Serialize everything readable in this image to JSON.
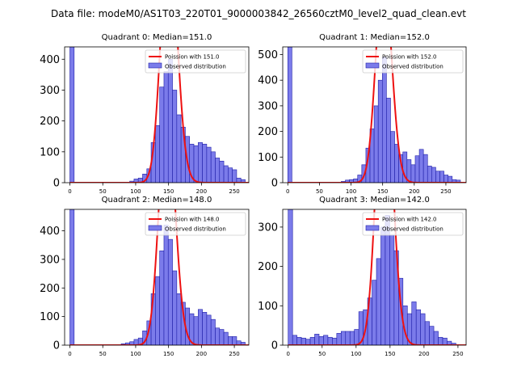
{
  "suptitle": "Data file: modeM0/AS1T03_220T01_9000003842_26560cztM0_level2_quad_clean.evt",
  "colors": {
    "hist_fill": "#7b7bea",
    "hist_edge": "#1f1fa8",
    "poisson": "#ee1111"
  },
  "chart_data": [
    {
      "type": "bar",
      "title": "Quadrant 0: Median=151.0",
      "median": 151.0,
      "legend": [
        "Poission with 151.0",
        "Observed distribution"
      ],
      "legend_position": "top-right",
      "xlim": [
        -8,
        272
      ],
      "ylim": [
        0,
        440
      ],
      "xticks": [
        0,
        50,
        100,
        150,
        200,
        250
      ],
      "yticks": [
        0,
        100,
        200,
        300,
        400
      ],
      "bin_width": 6.5,
      "bin_starts": [
        0,
        91,
        97.5,
        104,
        110.5,
        117,
        123.5,
        130,
        136.5,
        143,
        149.5,
        156,
        162.5,
        169,
        175.5,
        182,
        188.5,
        195,
        201.5,
        208,
        214.5,
        221,
        227.5,
        234,
        240.5,
        247,
        253.5,
        260
      ],
      "counts": [
        440,
        5,
        12,
        15,
        28,
        45,
        130,
        185,
        310,
        360,
        400,
        300,
        220,
        180,
        150,
        125,
        120,
        130,
        125,
        115,
        100,
        80,
        70,
        55,
        48,
        42,
        15,
        10
      ]
    },
    {
      "type": "bar",
      "title": "Quadrant 1: Median=152.0",
      "median": 152.0,
      "legend": [
        "Poission with 152.0",
        "Observed distribution"
      ],
      "legend_position": "top-right",
      "xlim": [
        -8,
        282
      ],
      "ylim": [
        0,
        530
      ],
      "xticks": [
        0,
        50,
        100,
        150,
        200,
        250
      ],
      "yticks": [
        0,
        100,
        200,
        300,
        400,
        500
      ],
      "bin_width": 6.5,
      "bin_starts": [
        0,
        78,
        84.5,
        91,
        97.5,
        104,
        110.5,
        117,
        123.5,
        130,
        136.5,
        143,
        149.5,
        156,
        162.5,
        169,
        175.5,
        182,
        188.5,
        195,
        201.5,
        208,
        214.5,
        221,
        227.5,
        234,
        240.5,
        247,
        253.5,
        260,
        266.5
      ],
      "counts": [
        530,
        2,
        5,
        10,
        12,
        15,
        30,
        70,
        135,
        210,
        300,
        400,
        490,
        330,
        200,
        150,
        110,
        120,
        90,
        70,
        105,
        130,
        110,
        65,
        60,
        45,
        45,
        30,
        25,
        12,
        10
      ]
    },
    {
      "type": "bar",
      "title": "Quadrant 2: Median=148.0",
      "median": 148.0,
      "legend": [
        "Poission with 148.0",
        "Observed distribution"
      ],
      "legend_position": "top-right",
      "xlim": [
        -8,
        272
      ],
      "ylim": [
        0,
        475
      ],
      "xticks": [
        0,
        50,
        100,
        150,
        200,
        250
      ],
      "yticks": [
        0,
        100,
        200,
        300,
        400
      ],
      "bin_width": 6.5,
      "bin_starts": [
        0,
        78,
        84.5,
        91,
        97.5,
        104,
        110.5,
        117,
        123.5,
        130,
        136.5,
        143,
        149.5,
        156,
        162.5,
        169,
        175.5,
        182,
        188.5,
        195,
        201.5,
        208,
        214.5,
        221,
        227.5,
        234,
        240.5,
        247,
        253.5,
        260
      ],
      "counts": [
        475,
        5,
        8,
        12,
        20,
        25,
        50,
        85,
        180,
        240,
        330,
        420,
        370,
        260,
        180,
        150,
        130,
        110,
        100,
        125,
        115,
        105,
        90,
        60,
        55,
        45,
        30,
        30,
        15,
        10
      ]
    },
    {
      "type": "bar",
      "title": "Quadrant 3: Median=142.0",
      "median": 142.0,
      "legend": [
        "Poission with 142.0",
        "Observed distribution"
      ],
      "legend_position": "top-right",
      "xlim": [
        -8,
        262
      ],
      "ylim": [
        0,
        345
      ],
      "xticks": [
        0,
        50,
        100,
        150,
        200,
        250
      ],
      "yticks": [
        0,
        100,
        200,
        300
      ],
      "bin_width": 6.5,
      "bin_starts": [
        0,
        6.5,
        13,
        19.5,
        26,
        32.5,
        39,
        45.5,
        52,
        58.5,
        65,
        71.5,
        78,
        84.5,
        91,
        97.5,
        104,
        110.5,
        117,
        123.5,
        130,
        136.5,
        143,
        149.5,
        156,
        162.5,
        169,
        175.5,
        182,
        188.5,
        195,
        201.5,
        208,
        214.5,
        221,
        227.5,
        234,
        240.5
      ],
      "counts": [
        345,
        25,
        20,
        18,
        15,
        20,
        28,
        22,
        25,
        20,
        18,
        30,
        35,
        35,
        35,
        40,
        85,
        90,
        120,
        165,
        220,
        300,
        330,
        280,
        240,
        170,
        100,
        80,
        110,
        90,
        80,
        60,
        48,
        35,
        20,
        18,
        10,
        5
      ]
    }
  ]
}
